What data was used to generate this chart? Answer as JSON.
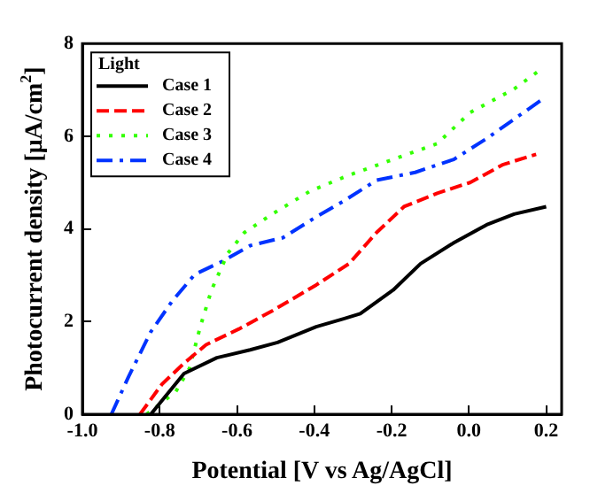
{
  "chart_data": {
    "type": "line",
    "xlabel": "Potential [V vs Ag/AgCl]",
    "ylabel": "Photocurrent density [μA/cm$^{2}$]",
    "legend_title": "Light",
    "legend": "top left",
    "grid": false,
    "marker": "none",
    "xlim": [
      -1.0,
      0.24
    ],
    "xticks": [
      {
        "value": -1.0,
        "label": "-1.0"
      },
      -0.8,
      -0.6,
      -0.4,
      -0.2,
      {
        "value": 0,
        "label": "0.0"
      },
      0.2
    ],
    "ylim": [
      0,
      8
    ],
    "yticks": [
      0,
      2,
      4,
      6,
      8
    ],
    "series": [
      {
        "name": "Case 1",
        "color": "#000000",
        "line_style": "solid",
        "x": [
          -0.823,
          -0.737,
          -0.652,
          -0.566,
          -0.495,
          -0.395,
          -0.324,
          -0.281,
          -0.196,
          -0.125,
          -0.039,
          0.046,
          0.117,
          0.2
        ],
        "values": [
          0,
          0.88,
          1.22,
          1.39,
          1.55,
          1.89,
          2.06,
          2.17,
          2.68,
          3.25,
          3.7,
          4.09,
          4.32,
          4.48
        ]
      },
      {
        "name": "Case 2",
        "color": "#ff0000",
        "line_style": "dashed",
        "x": [
          -0.851,
          -0.794,
          -0.737,
          -0.68,
          -0.595,
          -0.509,
          -0.395,
          -0.31,
          -0.239,
          -0.168,
          -0.082,
          0.003,
          0.089,
          0.174
        ],
        "values": [
          0,
          0.65,
          1.1,
          1.5,
          1.84,
          2.23,
          2.79,
          3.25,
          3.92,
          4.48,
          4.77,
          5.0,
          5.39,
          5.61
        ]
      },
      {
        "name": "Case 3",
        "color": "#33ff00",
        "line_style": "dotted",
        "x": [
          -0.834,
          -0.759,
          -0.723,
          -0.695,
          -0.666,
          -0.624,
          -0.581,
          -0.509,
          -0.41,
          -0.31,
          -0.196,
          -0.082,
          0.003,
          0.117,
          0.181
        ],
        "values": [
          0,
          0.48,
          0.99,
          1.89,
          2.68,
          3.47,
          3.92,
          4.32,
          4.82,
          5.16,
          5.5,
          5.84,
          6.51,
          7.02,
          7.41
        ]
      },
      {
        "name": "Case 4",
        "color": "#0033ff",
        "line_style": "dashdot",
        "x": [
          -0.925,
          -0.88,
          -0.823,
          -0.766,
          -0.709,
          -0.638,
          -0.566,
          -0.481,
          -0.395,
          -0.324,
          -0.239,
          -0.139,
          -0.039,
          0.046,
          0.189
        ],
        "values": [
          0,
          0.82,
          1.78,
          2.46,
          3.02,
          3.3,
          3.64,
          3.81,
          4.26,
          4.6,
          5.05,
          5.22,
          5.5,
          5.95,
          6.79
        ]
      }
    ]
  }
}
